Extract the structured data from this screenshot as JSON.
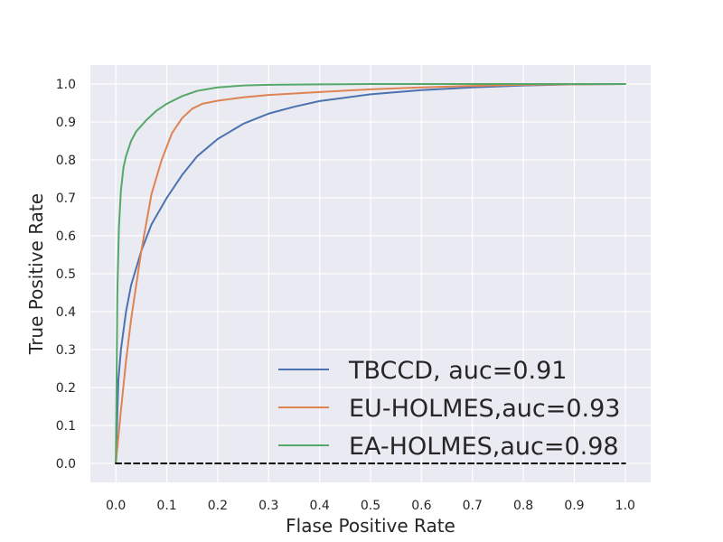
{
  "chart_data": {
    "type": "line",
    "xlabel": "Flase Positive Rate",
    "ylabel": "True Positive Rate",
    "xlim": [
      -0.05,
      1.05
    ],
    "ylim": [
      -0.05,
      1.05
    ],
    "xticks": [
      "0.0",
      "0.1",
      "0.2",
      "0.3",
      "0.4",
      "0.5",
      "0.6",
      "0.7",
      "0.8",
      "0.9",
      "1.0"
    ],
    "yticks": [
      "0.0",
      "0.1",
      "0.2",
      "0.3",
      "0.4",
      "0.5",
      "0.6",
      "0.7",
      "0.8",
      "0.9",
      "1.0"
    ],
    "grid": true,
    "legend_position": "lower-right",
    "series": [
      {
        "name": "TBCCD, auc=0.91",
        "color": "#4c72b0",
        "points": [
          [
            0,
            0
          ],
          [
            0.005,
            0.22
          ],
          [
            0.01,
            0.3
          ],
          [
            0.02,
            0.4
          ],
          [
            0.03,
            0.47
          ],
          [
            0.05,
            0.56
          ],
          [
            0.07,
            0.63
          ],
          [
            0.1,
            0.7
          ],
          [
            0.13,
            0.76
          ],
          [
            0.16,
            0.81
          ],
          [
            0.2,
            0.855
          ],
          [
            0.25,
            0.895
          ],
          [
            0.3,
            0.922
          ],
          [
            0.35,
            0.94
          ],
          [
            0.4,
            0.955
          ],
          [
            0.5,
            0.973
          ],
          [
            0.6,
            0.984
          ],
          [
            0.7,
            0.991
          ],
          [
            0.8,
            0.996
          ],
          [
            0.9,
            0.999
          ],
          [
            1.0,
            1.0
          ]
        ]
      },
      {
        "name": "EU-HOLMES,auc=0.93",
        "color": "#dd8452",
        "points": [
          [
            0,
            0
          ],
          [
            0.01,
            0.14
          ],
          [
            0.02,
            0.27
          ],
          [
            0.03,
            0.38
          ],
          [
            0.05,
            0.56
          ],
          [
            0.07,
            0.71
          ],
          [
            0.09,
            0.8
          ],
          [
            0.11,
            0.87
          ],
          [
            0.13,
            0.91
          ],
          [
            0.15,
            0.935
          ],
          [
            0.17,
            0.948
          ],
          [
            0.2,
            0.956
          ],
          [
            0.25,
            0.965
          ],
          [
            0.3,
            0.971
          ],
          [
            0.4,
            0.979
          ],
          [
            0.5,
            0.986
          ],
          [
            0.6,
            0.991
          ],
          [
            0.7,
            0.995
          ],
          [
            0.8,
            0.998
          ],
          [
            1.0,
            1.0
          ]
        ]
      },
      {
        "name": "EA-HOLMES,auc=0.98",
        "color": "#55a868",
        "points": [
          [
            0,
            0
          ],
          [
            0.003,
            0.45
          ],
          [
            0.006,
            0.62
          ],
          [
            0.01,
            0.72
          ],
          [
            0.015,
            0.78
          ],
          [
            0.02,
            0.81
          ],
          [
            0.03,
            0.85
          ],
          [
            0.04,
            0.875
          ],
          [
            0.06,
            0.905
          ],
          [
            0.08,
            0.93
          ],
          [
            0.1,
            0.948
          ],
          [
            0.13,
            0.968
          ],
          [
            0.16,
            0.982
          ],
          [
            0.2,
            0.991
          ],
          [
            0.25,
            0.996
          ],
          [
            0.3,
            0.998
          ],
          [
            0.4,
            0.999
          ],
          [
            0.5,
            1.0
          ],
          [
            1.0,
            1.0
          ]
        ]
      },
      {
        "name": "",
        "color": "#000000",
        "dashed": true,
        "points": [
          [
            0,
            0
          ],
          [
            1.0,
            0
          ]
        ]
      }
    ]
  }
}
